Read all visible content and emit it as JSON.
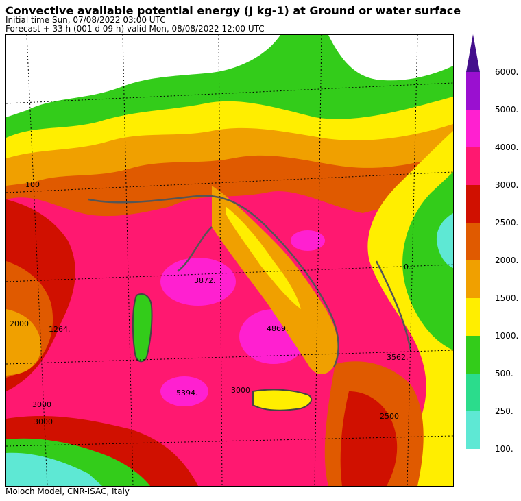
{
  "header": {
    "title": "Convective available potential energy (J kg-1) at Ground or water surface",
    "initial_time": "Initial time  Sun, 07/08/2022  03:00 UTC",
    "forecast": "Forecast  +  33 h  (001 d 09 h)  valid Mon, 08/08/2022 12:00 UTC"
  },
  "credit": "Moloch Model, CNR-ISAC, Italy",
  "colorbar": {
    "levels": [
      {
        "label": "100.",
        "color": "#5ee8d4"
      },
      {
        "label": "250.",
        "color": "#2bdc8c"
      },
      {
        "label": "500.",
        "color": "#33cc1a"
      },
      {
        "label": "1000.",
        "color": "#ffee00"
      },
      {
        "label": "1500.",
        "color": "#f0a000"
      },
      {
        "label": "2000.",
        "color": "#e05a00"
      },
      {
        "label": "2500.",
        "color": "#d01000"
      },
      {
        "label": "3000.",
        "color": "#ff1870"
      },
      {
        "label": "4000.",
        "color": "#ff20d0"
      },
      {
        "label": "5000.",
        "color": "#9a10d0"
      },
      {
        "label": "6000.",
        "color": "#44108c"
      }
    ]
  },
  "map_labels": [
    {
      "text": "2000",
      "name": "contour-label-2000-west"
    },
    {
      "text": "1264.",
      "name": "max-label-1264"
    },
    {
      "text": "3000",
      "name": "contour-label-3000-a"
    },
    {
      "text": "3000",
      "name": "contour-label-3000-b"
    },
    {
      "text": "3872.",
      "name": "max-label-3872"
    },
    {
      "text": "4869.",
      "name": "max-label-4869"
    },
    {
      "text": "5394.",
      "name": "max-label-5394"
    },
    {
      "text": "3000",
      "name": "contour-label-3000-c"
    },
    {
      "text": "3562.",
      "name": "max-label-3562"
    },
    {
      "text": "2500",
      "name": "contour-label-2500"
    },
    {
      "text": "0.",
      "name": "min-label-0"
    },
    {
      "text": "100",
      "name": "contour-label-100"
    }
  ]
}
